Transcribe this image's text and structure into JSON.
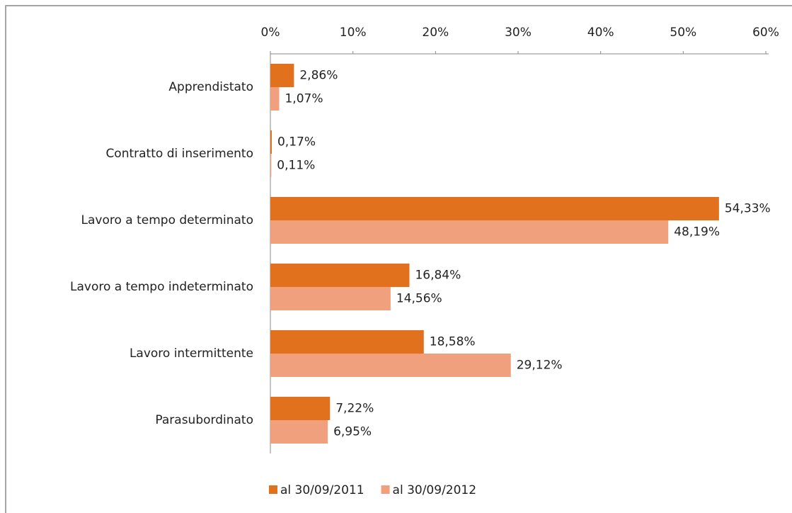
{
  "chart_data": {
    "type": "bar",
    "orientation": "horizontal",
    "categories": [
      "Apprendistato",
      "Contratto di inserimento",
      "Lavoro a tempo determinato",
      "Lavoro a tempo indeterminato",
      "Lavoro intermittente",
      "Parasubordinato"
    ],
    "series": [
      {
        "name": "al 30/09/2011",
        "color": "#e2711d",
        "values": [
          2.86,
          0.17,
          54.33,
          16.84,
          18.58,
          7.22
        ],
        "value_labels": [
          "2,86%",
          "0,17%",
          "54,33%",
          "16,84%",
          "18,58%",
          "7,22%"
        ]
      },
      {
        "name": "al 30/09/2012",
        "color": "#f0a07c",
        "values": [
          1.07,
          0.11,
          48.19,
          14.56,
          29.12,
          6.95
        ],
        "value_labels": [
          "1,07%",
          "0,11%",
          "48,19%",
          "14,56%",
          "29,12%",
          "6,95%"
        ]
      }
    ],
    "xlim": [
      0,
      60
    ],
    "xticks": [
      {
        "value": 0,
        "label": "0%"
      },
      {
        "value": 10,
        "label": "10%"
      },
      {
        "value": 20,
        "label": "20%"
      },
      {
        "value": 30,
        "label": "30%"
      },
      {
        "value": 40,
        "label": "40%"
      },
      {
        "value": 50,
        "label": "50%"
      },
      {
        "value": 60,
        "label": "60%"
      }
    ],
    "legend": "bottom"
  }
}
